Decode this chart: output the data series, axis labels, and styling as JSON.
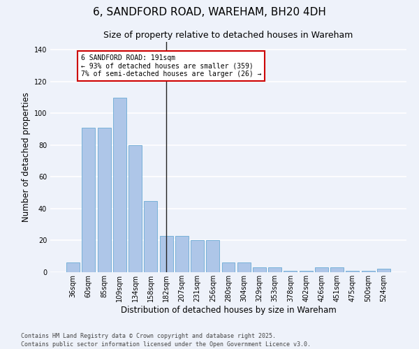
{
  "title": "6, SANDFORD ROAD, WAREHAM, BH20 4DH",
  "subtitle": "Size of property relative to detached houses in Wareham",
  "xlabel": "Distribution of detached houses by size in Wareham",
  "ylabel": "Number of detached properties",
  "categories": [
    "36sqm",
    "60sqm",
    "85sqm",
    "109sqm",
    "134sqm",
    "158sqm",
    "182sqm",
    "207sqm",
    "231sqm",
    "256sqm",
    "280sqm",
    "304sqm",
    "329sqm",
    "353sqm",
    "378sqm",
    "402sqm",
    "426sqm",
    "451sqm",
    "475sqm",
    "500sqm",
    "524sqm"
  ],
  "values": [
    6,
    91,
    91,
    110,
    80,
    45,
    23,
    23,
    20,
    20,
    6,
    6,
    3,
    3,
    1,
    1,
    3,
    3,
    1,
    1,
    2
  ],
  "bar_color": "#aec6e8",
  "bar_edge_color": "#6aaad4",
  "background_color": "#eef2fa",
  "grid_color": "#ffffff",
  "annotation_text": "6 SANDFORD ROAD: 191sqm\n← 93% of detached houses are smaller (359)\n7% of semi-detached houses are larger (26) →",
  "annotation_box_color": "#ffffff",
  "annotation_box_edge": "#cc0000",
  "vline_x_index": 6,
  "ylim": [
    0,
    145
  ],
  "yticks": [
    0,
    20,
    40,
    60,
    80,
    100,
    120,
    140
  ],
  "footer": "Contains HM Land Registry data © Crown copyright and database right 2025.\nContains public sector information licensed under the Open Government Licence v3.0.",
  "title_fontsize": 11,
  "subtitle_fontsize": 9,
  "ylabel_fontsize": 8.5,
  "xlabel_fontsize": 8.5,
  "tick_fontsize": 7,
  "annotation_fontsize": 7,
  "footer_fontsize": 6
}
